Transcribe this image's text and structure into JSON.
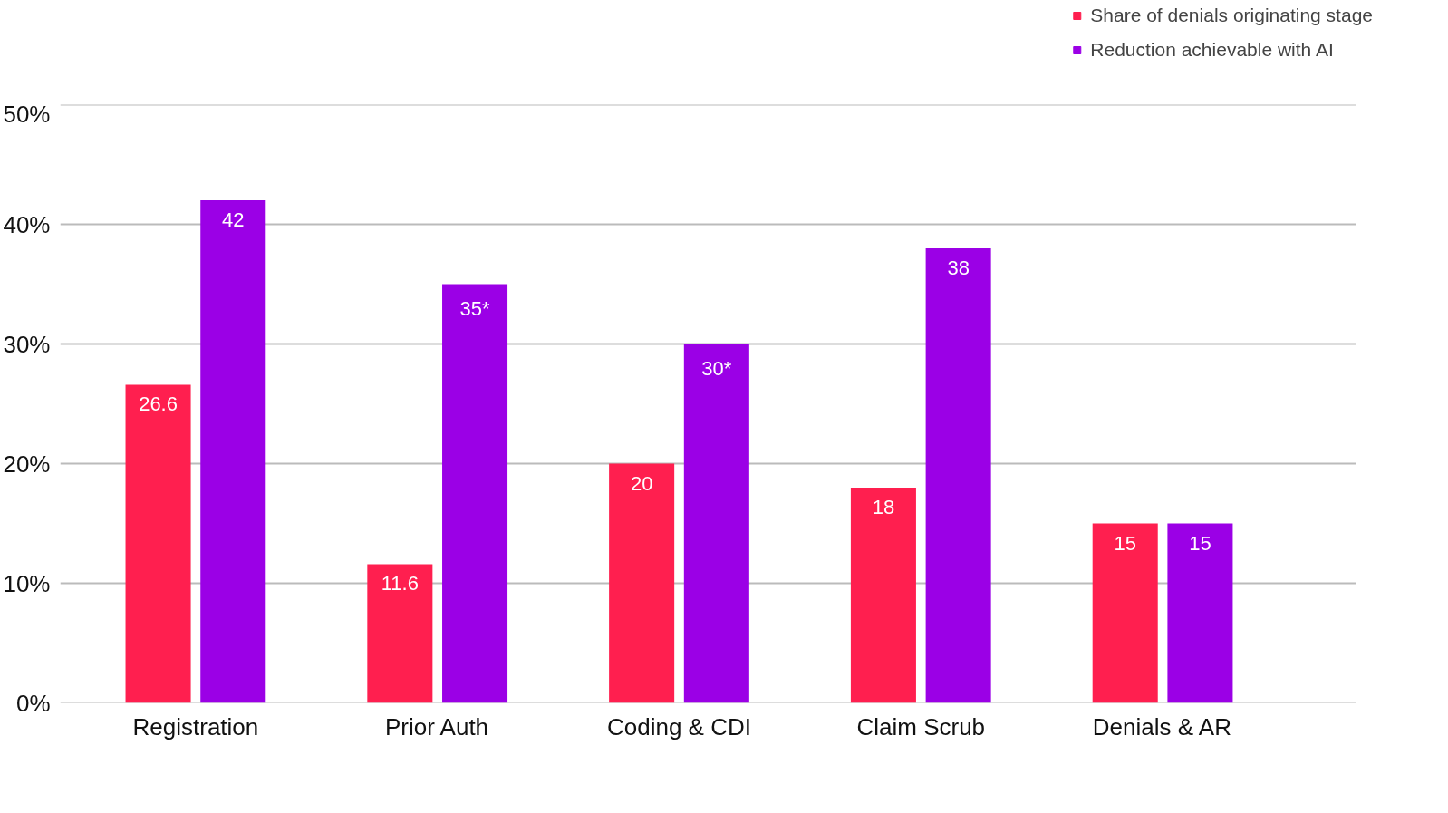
{
  "chart_data": {
    "type": "bar",
    "categories": [
      "Registration",
      "Prior Auth",
      "Coding & CDI",
      "Claim Scrub",
      "Denials & AR"
    ],
    "series": [
      {
        "name": "Share of denials originating stage",
        "color": "#ff1f4f",
        "values": [
          26.6,
          11.6,
          20,
          18,
          15
        ],
        "value_labels": [
          "26.6",
          "11.6",
          "20",
          "18",
          "15"
        ]
      },
      {
        "name": "Reduction achievable with AI",
        "color": "#9b00e6",
        "values": [
          42,
          35,
          30,
          38,
          15
        ],
        "value_labels": [
          "42",
          "35*",
          "30*",
          "38",
          "15"
        ]
      }
    ],
    "ylim": [
      0,
      50
    ],
    "yticks": [
      {
        "value": 0,
        "label": "0%"
      },
      {
        "value": 10,
        "label": "10%"
      },
      {
        "value": 20,
        "label": "20%"
      },
      {
        "value": 30,
        "label": "30%"
      },
      {
        "value": 40,
        "label": "40%"
      },
      {
        "value": 50,
        "label": "50%"
      }
    ],
    "grid": "y",
    "legend": "top right"
  }
}
